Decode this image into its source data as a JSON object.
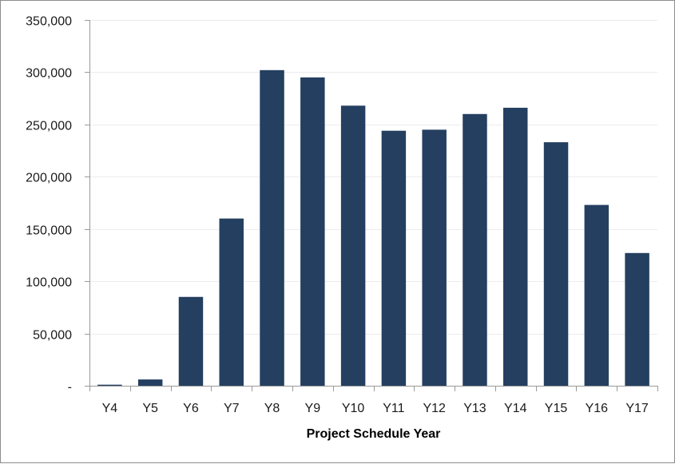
{
  "colors": {
    "bar": "#243f60",
    "axis": "#9a9a9a",
    "grid": "#ececec",
    "text": "#1a1a1a"
  },
  "chart_data": {
    "type": "bar",
    "title": "",
    "xlabel": "Project Schedule Year",
    "ylabel": "",
    "categories": [
      "Y4",
      "Y5",
      "Y6",
      "Y7",
      "Y8",
      "Y9",
      "Y10",
      "Y11",
      "Y12",
      "Y13",
      "Y14",
      "Y15",
      "Y16",
      "Y17"
    ],
    "values": [
      1000,
      6000,
      85000,
      160000,
      302000,
      295000,
      268000,
      244000,
      245000,
      260000,
      266000,
      233000,
      173000,
      127000
    ],
    "ylim": [
      0,
      350000
    ],
    "yticks": [
      0,
      50000,
      100000,
      150000,
      200000,
      250000,
      300000,
      350000
    ],
    "ytick_labels": [
      "-",
      "50,000",
      "100,000",
      "150,000",
      "200,000",
      "250,000",
      "300,000",
      "350,000"
    ],
    "grid": true,
    "legend": "none"
  }
}
